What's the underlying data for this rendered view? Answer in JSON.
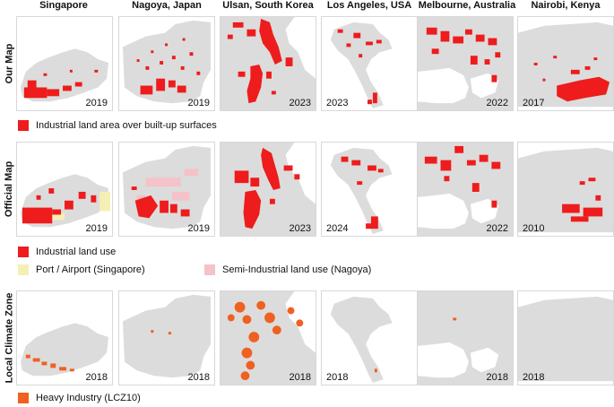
{
  "columns": [
    "Singapore",
    "Nagoya, Japan",
    "Ulsan, South Korea",
    "Los Angeles, USA",
    "Melbourne, Australia",
    "Nairobi, Kenya"
  ],
  "rows": {
    "our_map": {
      "label": "Our Map",
      "years": [
        "2019",
        "2019",
        "2023",
        "2023",
        "2022",
        "2017"
      ],
      "legend": [
        {
          "label": "Industrial land area over built-up surfaces",
          "color": "#ee1c1c"
        }
      ]
    },
    "official_map": {
      "label": "Official Map",
      "years": [
        "2019",
        "2019",
        "2023",
        "2024",
        "2022",
        "2010"
      ],
      "legend": [
        {
          "label": "Industrial land use",
          "color": "#ee1c1c"
        },
        {
          "label": "Port / Airport (Singapore)",
          "color": "#f5efb5"
        },
        {
          "label": "Semi-Industrial land use (Nagoya)",
          "color": "#f4c2c8"
        }
      ]
    },
    "lcz": {
      "label": "Local Climate Zone",
      "years": [
        "2018",
        "2018",
        "2018",
        "2018",
        "2018",
        "2018"
      ],
      "legend": [
        {
          "label": "Heavy Industry (LCZ10)",
          "color": "#f06020"
        }
      ]
    }
  },
  "colors": {
    "builtup": "#dcdcdc",
    "industrial": "#ee1c1c",
    "heavy_industry": "#f06020",
    "port": "#f5efb5",
    "semi_industrial": "#f4c2c8"
  }
}
